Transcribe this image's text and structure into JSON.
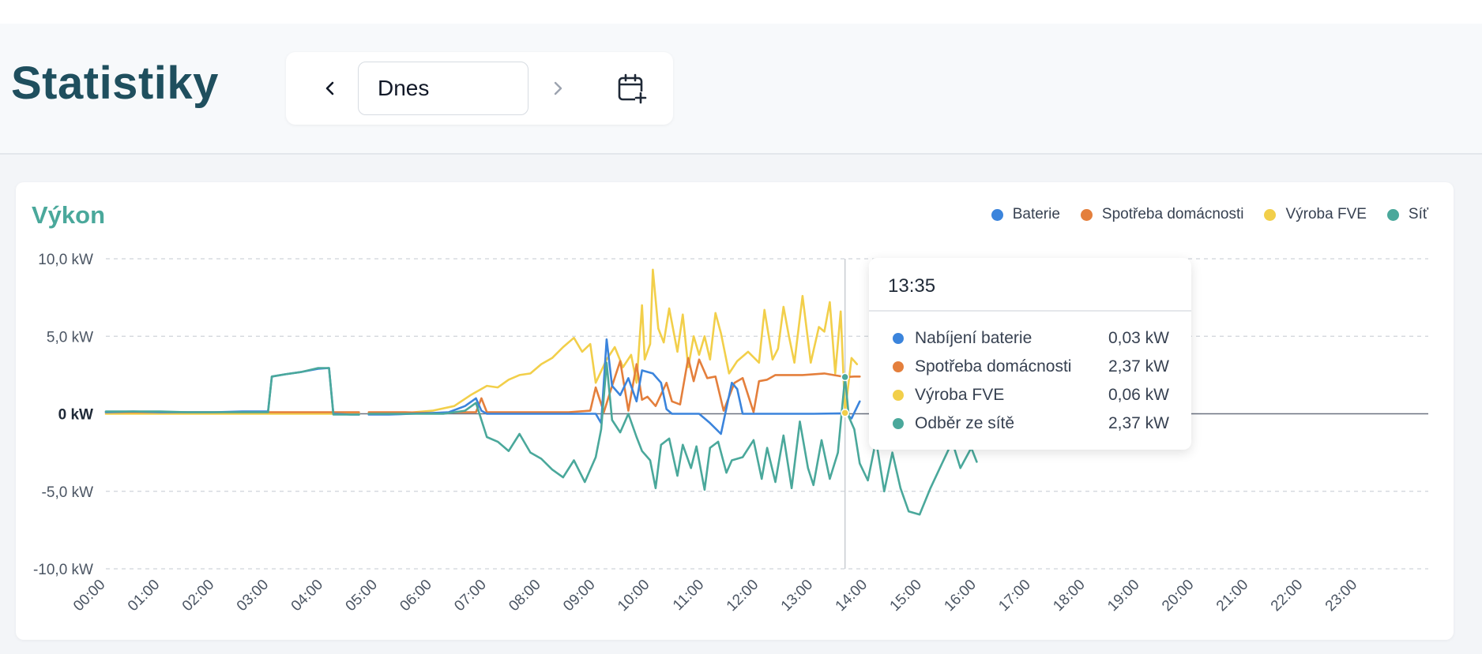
{
  "page": {
    "title": "Statistiky",
    "date_value": "Dnes",
    "icons": {
      "prev": "chevron-left-icon",
      "next": "chevron-right-icon",
      "calendar": "calendar-plus-icon"
    }
  },
  "card": {
    "title": "Výkon"
  },
  "legend": [
    {
      "label": "Baterie",
      "color": "#3b84dc"
    },
    {
      "label": "Spotřeba domácnosti",
      "color": "#e47f3c"
    },
    {
      "label": "Výroba FVE",
      "color": "#f2cf4a"
    },
    {
      "label": "Síť",
      "color": "#4aa89b"
    }
  ],
  "tooltip": {
    "time": "13:35",
    "rows": [
      {
        "label": "Nabíjení baterie",
        "value": "0,03 kW",
        "color": "#3b84dc"
      },
      {
        "label": "Spotřeba domácnosti",
        "value": "2,37 kW",
        "color": "#e47f3c"
      },
      {
        "label": "Výroba FVE",
        "value": "0,06 kW",
        "color": "#f2cf4a"
      },
      {
        "label": "Odběr ze sítě",
        "value": "2,37 kW",
        "color": "#4aa89b"
      }
    ]
  },
  "chart_data": {
    "type": "line",
    "title": "Výkon",
    "xlabel": "",
    "ylabel": "",
    "x_ticks": [
      "00:00",
      "01:00",
      "02:00",
      "03:00",
      "04:00",
      "05:00",
      "06:00",
      "07:00",
      "08:00",
      "09:00",
      "10:00",
      "11:00",
      "12:00",
      "13:00",
      "14:00",
      "15:00",
      "16:00",
      "17:00",
      "18:00",
      "19:00",
      "20:00",
      "21:00",
      "22:00",
      "23:00"
    ],
    "y_ticks": [
      {
        "value": 10,
        "label": "10,0 kW"
      },
      {
        "value": 5,
        "label": "5,0 kW"
      },
      {
        "value": 0,
        "label": "0 kW"
      },
      {
        "value": -5,
        "label": "-5,0 kW"
      },
      {
        "value": -10,
        "label": "-10,0 kW"
      }
    ],
    "ylim": [
      -10,
      10
    ],
    "xlim_hours": [
      0,
      24
    ],
    "grid": true,
    "legend_position": "top-right",
    "cursor_time_hours": 13.58,
    "series": [
      {
        "name": "Baterie",
        "color": "#3b84dc",
        "points": [
          [
            0,
            0.1
          ],
          [
            0.5,
            0.15
          ],
          [
            1,
            0.1
          ],
          [
            1.5,
            0.1
          ],
          [
            2,
            0.1
          ],
          [
            2.5,
            0.15
          ],
          [
            2.98,
            0.15
          ],
          [
            3.05,
            2.4
          ],
          [
            3.3,
            2.55
          ],
          [
            3.6,
            2.7
          ],
          [
            3.9,
            2.9
          ],
          [
            4.1,
            2.95
          ],
          [
            4.18,
            0
          ],
          [
            4.5,
            -0.05
          ],
          [
            4.65,
            -0.05
          ],
          [
            4.7,
            null
          ],
          [
            4.8,
            null
          ],
          [
            4.83,
            -0.05
          ],
          [
            5.2,
            -0.05
          ],
          [
            5.6,
            0.0
          ],
          [
            6,
            0.05
          ],
          [
            6.3,
            0.1
          ],
          [
            6.6,
            0.5
          ],
          [
            6.8,
            1.0
          ],
          [
            6.9,
            0.2
          ],
          [
            7,
            0
          ],
          [
            7.5,
            0
          ],
          [
            8,
            0
          ],
          [
            8.5,
            0
          ],
          [
            9,
            0
          ],
          [
            9.1,
            -0.6
          ],
          [
            9.2,
            4.8
          ],
          [
            9.3,
            1.8
          ],
          [
            9.45,
            1.2
          ],
          [
            9.6,
            2.3
          ],
          [
            9.75,
            0.8
          ],
          [
            9.85,
            2.8
          ],
          [
            10.05,
            2.6
          ],
          [
            10.2,
            2.0
          ],
          [
            10.3,
            0.3
          ],
          [
            10.4,
            0
          ],
          [
            10.9,
            0
          ],
          [
            11.1,
            -0.6
          ],
          [
            11.3,
            -1.3
          ],
          [
            11.5,
            2.0
          ],
          [
            11.6,
            1.6
          ],
          [
            11.7,
            0
          ],
          [
            12,
            0
          ],
          [
            12.5,
            0
          ],
          [
            13,
            0
          ],
          [
            13.58,
            0.03
          ],
          [
            13.7,
            -0.3
          ],
          [
            13.85,
            0.8
          ]
        ]
      },
      {
        "name": "Spotřeba domácnosti",
        "color": "#e47f3c",
        "points": [
          [
            0,
            0.1
          ],
          [
            1,
            0.1
          ],
          [
            2,
            0.1
          ],
          [
            3,
            0.1
          ],
          [
            4,
            0.1
          ],
          [
            4.2,
            0.1
          ],
          [
            4.5,
            0.1
          ],
          [
            4.65,
            0.1
          ],
          [
            4.7,
            null
          ],
          [
            4.8,
            null
          ],
          [
            4.83,
            0.1
          ],
          [
            5.5,
            0.1
          ],
          [
            6,
            0.05
          ],
          [
            6.5,
            0.1
          ],
          [
            6.8,
            0.1
          ],
          [
            6.9,
            1.0
          ],
          [
            7.0,
            0.1
          ],
          [
            7.5,
            0.1
          ],
          [
            8,
            0.1
          ],
          [
            8.5,
            0.1
          ],
          [
            8.9,
            0.2
          ],
          [
            9.0,
            1.7
          ],
          [
            9.15,
            0.1
          ],
          [
            9.3,
            1.8
          ],
          [
            9.45,
            3.4
          ],
          [
            9.6,
            0.2
          ],
          [
            9.75,
            3.2
          ],
          [
            9.85,
            0.9
          ],
          [
            9.95,
            1.1
          ],
          [
            10.1,
            0.5
          ],
          [
            10.3,
            2.0
          ],
          [
            10.4,
            0.8
          ],
          [
            10.55,
            0.6
          ],
          [
            10.7,
            3.6
          ],
          [
            10.8,
            2.1
          ],
          [
            10.9,
            3.5
          ],
          [
            11.05,
            2.3
          ],
          [
            11.2,
            2.4
          ],
          [
            11.35,
            0.2
          ],
          [
            11.55,
            2.0
          ],
          [
            11.7,
            2.3
          ],
          [
            11.9,
            0.1
          ],
          [
            12.0,
            2.1
          ],
          [
            12.15,
            2.2
          ],
          [
            12.3,
            2.5
          ],
          [
            12.8,
            2.5
          ],
          [
            13.2,
            2.6
          ],
          [
            13.58,
            2.37
          ],
          [
            13.75,
            2.4
          ],
          [
            13.85,
            2.4
          ]
        ]
      },
      {
        "name": "Výroba FVE",
        "color": "#f2cf4a",
        "points": [
          [
            0,
            0
          ],
          [
            2,
            0
          ],
          [
            3,
            0
          ],
          [
            4,
            0
          ],
          [
            4.65,
            0
          ],
          [
            4.7,
            null
          ],
          [
            4.8,
            null
          ],
          [
            4.83,
            0
          ],
          [
            5.5,
            0.05
          ],
          [
            6,
            0.2
          ],
          [
            6.4,
            0.5
          ],
          [
            6.7,
            1.2
          ],
          [
            7,
            1.8
          ],
          [
            7.2,
            1.7
          ],
          [
            7.4,
            2.2
          ],
          [
            7.6,
            2.5
          ],
          [
            7.8,
            2.6
          ],
          [
            8,
            3.2
          ],
          [
            8.2,
            3.6
          ],
          [
            8.4,
            4.3
          ],
          [
            8.6,
            4.9
          ],
          [
            8.75,
            4.0
          ],
          [
            8.9,
            4.5
          ],
          [
            9.0,
            2.0
          ],
          [
            9.2,
            3.5
          ],
          [
            9.35,
            4.3
          ],
          [
            9.5,
            3.0
          ],
          [
            9.65,
            3.8
          ],
          [
            9.75,
            2.0
          ],
          [
            9.85,
            7.0
          ],
          [
            9.9,
            3.5
          ],
          [
            10.0,
            4.5
          ],
          [
            10.05,
            9.3
          ],
          [
            10.15,
            5.5
          ],
          [
            10.25,
            4.6
          ],
          [
            10.35,
            6.8
          ],
          [
            10.5,
            4.0
          ],
          [
            10.6,
            6.4
          ],
          [
            10.7,
            3.0
          ],
          [
            10.8,
            5.0
          ],
          [
            10.9,
            3.8
          ],
          [
            11.0,
            5.0
          ],
          [
            11.1,
            3.5
          ],
          [
            11.2,
            6.5
          ],
          [
            11.3,
            5.2
          ],
          [
            11.45,
            2.6
          ],
          [
            11.6,
            3.4
          ],
          [
            11.8,
            4.0
          ],
          [
            12.0,
            3.3
          ],
          [
            12.1,
            6.7
          ],
          [
            12.25,
            3.5
          ],
          [
            12.35,
            4.2
          ],
          [
            12.45,
            6.9
          ],
          [
            12.55,
            5.0
          ],
          [
            12.65,
            3.3
          ],
          [
            12.8,
            7.6
          ],
          [
            12.95,
            3.3
          ],
          [
            13.1,
            5.6
          ],
          [
            13.2,
            5.3
          ],
          [
            13.3,
            7.2
          ],
          [
            13.4,
            2.6
          ],
          [
            13.5,
            6.6
          ],
          [
            13.58,
            0.06
          ],
          [
            13.7,
            3.6
          ],
          [
            13.8,
            3.2
          ]
        ]
      },
      {
        "name": "Síť",
        "color": "#4aa89b",
        "points": [
          [
            0,
            0.15
          ],
          [
            0.5,
            0.15
          ],
          [
            1,
            0.15
          ],
          [
            1.5,
            0.1
          ],
          [
            2,
            0.1
          ],
          [
            2.5,
            0.1
          ],
          [
            2.98,
            0.1
          ],
          [
            3.05,
            2.4
          ],
          [
            3.3,
            2.55
          ],
          [
            3.6,
            2.7
          ],
          [
            3.9,
            2.95
          ],
          [
            4.1,
            2.95
          ],
          [
            4.18,
            -0.05
          ],
          [
            4.5,
            -0.05
          ],
          [
            4.65,
            -0.05
          ],
          [
            4.7,
            null
          ],
          [
            4.8,
            null
          ],
          [
            4.83,
            0
          ],
          [
            5.5,
            0
          ],
          [
            6.2,
            0
          ],
          [
            6.6,
            0.2
          ],
          [
            6.8,
            0.7
          ],
          [
            7.0,
            -1.5
          ],
          [
            7.2,
            -1.8
          ],
          [
            7.4,
            -2.4
          ],
          [
            7.6,
            -1.3
          ],
          [
            7.8,
            -2.5
          ],
          [
            8.0,
            -2.9
          ],
          [
            8.2,
            -3.6
          ],
          [
            8.4,
            -4.1
          ],
          [
            8.6,
            -3.0
          ],
          [
            8.8,
            -4.4
          ],
          [
            9.0,
            -2.8
          ],
          [
            9.1,
            -1.0
          ],
          [
            9.2,
            3.3
          ],
          [
            9.3,
            -0.4
          ],
          [
            9.45,
            -1.2
          ],
          [
            9.6,
            0.0
          ],
          [
            9.75,
            -1.5
          ],
          [
            9.85,
            -2.4
          ],
          [
            10.0,
            -3.0
          ],
          [
            10.1,
            -4.8
          ],
          [
            10.2,
            -2.0
          ],
          [
            10.35,
            -1.6
          ],
          [
            10.5,
            -4.0
          ],
          [
            10.6,
            -2.0
          ],
          [
            10.75,
            -3.5
          ],
          [
            10.85,
            -2.1
          ],
          [
            11.0,
            -4.9
          ],
          [
            11.1,
            -2.2
          ],
          [
            11.25,
            -1.8
          ],
          [
            11.4,
            -3.8
          ],
          [
            11.5,
            -3.0
          ],
          [
            11.7,
            -2.8
          ],
          [
            11.9,
            -1.7
          ],
          [
            12.05,
            -4.2
          ],
          [
            12.15,
            -2.2
          ],
          [
            12.3,
            -4.4
          ],
          [
            12.45,
            -1.4
          ],
          [
            12.6,
            -4.8
          ],
          [
            12.75,
            -0.5
          ],
          [
            12.9,
            -3.5
          ],
          [
            13.0,
            -4.6
          ],
          [
            13.15,
            -1.7
          ],
          [
            13.3,
            -4.2
          ],
          [
            13.45,
            -2.5
          ],
          [
            13.58,
            2.37
          ],
          [
            13.65,
            -0.2
          ],
          [
            13.75,
            -1.0
          ],
          [
            13.85,
            -3.2
          ],
          [
            14.0,
            -4.3
          ],
          [
            14.15,
            -1.7
          ],
          [
            14.3,
            -5.0
          ],
          [
            14.45,
            -2.5
          ],
          [
            14.6,
            -4.8
          ],
          [
            14.75,
            -6.3
          ],
          [
            14.95,
            -6.5
          ],
          [
            15.15,
            -4.8
          ],
          [
            15.35,
            -3.3
          ],
          [
            15.55,
            -1.8
          ],
          [
            15.7,
            -3.5
          ],
          [
            15.9,
            -2.2
          ],
          [
            16.0,
            -3.1
          ]
        ]
      }
    ]
  }
}
